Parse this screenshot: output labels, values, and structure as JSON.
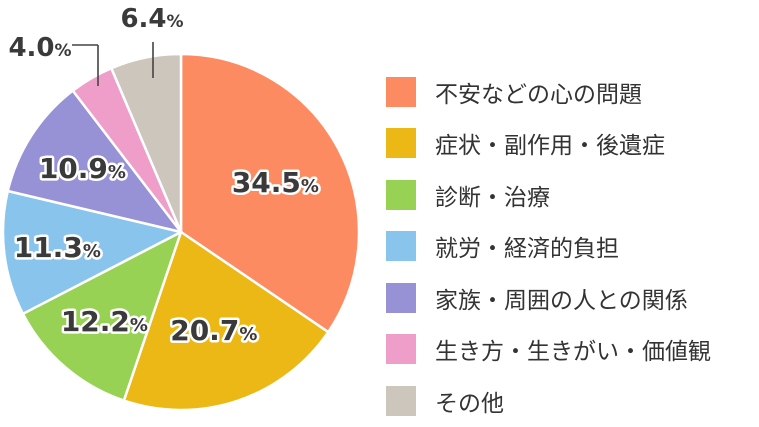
{
  "chart_data": {
    "type": "pie",
    "categories": [
      "不安などの心の問題",
      "症状・副作用・後遺症",
      "診断・治療",
      "就労・経済的負担",
      "家族・周囲の人との関係",
      "生き方・生きがい・価値観",
      "その他"
    ],
    "values": [
      34.5,
      20.7,
      12.2,
      11.3,
      10.9,
      4.0,
      6.4
    ],
    "value_labels": [
      "34.5",
      "20.7",
      "12.2",
      "11.3",
      "10.9",
      "4.0",
      "6.4"
    ],
    "unit": "%",
    "colors": [
      "#fd8b62",
      "#ebb815",
      "#98d254",
      "#89c4ec",
      "#9791d5",
      "#ee9ec9",
      "#cdc6bc"
    ],
    "start_angle": "12 o'clock",
    "direction": "clockwise",
    "legend_position": "right"
  }
}
